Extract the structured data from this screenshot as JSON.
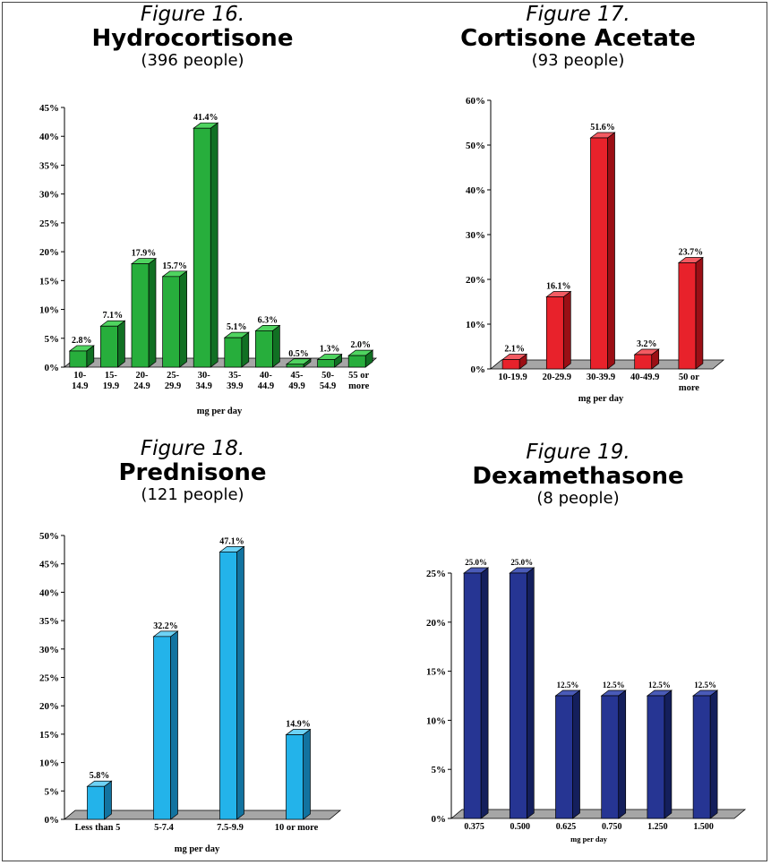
{
  "charts": [
    {
      "figure_label": "Figure 16.",
      "title": "Hydrocortisone",
      "subtitle": "(396 people)",
      "xlabel": "mg per day",
      "colors": {
        "front": "#27ae3c",
        "side": "#117023",
        "top": "#4fd460"
      },
      "yticks": [
        "0%",
        "5%",
        "10%",
        "15%",
        "20%",
        "25%",
        "30%",
        "35%",
        "40%",
        "45%"
      ]
    },
    {
      "figure_label": "Figure 17.",
      "title": "Cortisone Acetate",
      "subtitle": "(93 people)",
      "xlabel": "mg per day",
      "colors": {
        "front": "#e8222b",
        "side": "#9b0f15",
        "top": "#f35b62"
      },
      "yticks": [
        "0%",
        "10%",
        "20%",
        "30%",
        "40%",
        "50%",
        "60%"
      ]
    },
    {
      "figure_label": "Figure 18.",
      "title": "Prednisone",
      "subtitle": "(121 people)",
      "xlabel": "mg per day",
      "colors": {
        "front": "#23b3ea",
        "side": "#1273a0",
        "top": "#6dd2f5"
      },
      "yticks": [
        "0%",
        "5%",
        "10%",
        "15%",
        "20%",
        "25%",
        "30%",
        "35%",
        "40%",
        "45%",
        "50%"
      ]
    },
    {
      "figure_label": "Figure 19.",
      "title": "Dexamethasone",
      "subtitle": "(8 people)",
      "xlabel": "mg per day",
      "colors": {
        "front": "#263593",
        "side": "#141f5c",
        "top": "#4a5bb8"
      },
      "yticks": [
        "0%",
        "5%",
        "10%",
        "15%",
        "20%",
        "25%"
      ]
    }
  ],
  "chart_data": [
    {
      "type": "bar",
      "title": "Hydrocortisone",
      "xlabel": "mg per day",
      "ylabel": "",
      "ylim": [
        0,
        45
      ],
      "categories": [
        [
          "10-",
          "14.9"
        ],
        [
          "15-",
          "19.9"
        ],
        [
          "20-",
          "24.9"
        ],
        [
          "25-",
          "29.9"
        ],
        [
          "30-",
          "34.9"
        ],
        [
          "35-",
          "39.9"
        ],
        [
          "40-",
          "44.9"
        ],
        [
          "45-",
          "49.9"
        ],
        [
          "50-",
          "54.9"
        ],
        [
          "55 or",
          "more"
        ]
      ],
      "values": [
        2.8,
        7.1,
        17.9,
        15.7,
        41.4,
        5.1,
        6.3,
        0.5,
        1.3,
        2.0
      ],
      "value_labels": [
        "2.8%",
        "7.1%",
        "17.9%",
        "15.7%",
        "41.4%",
        "5.1%",
        "6.3%",
        "0.5%",
        "1.3%",
        "2.0%"
      ]
    },
    {
      "type": "bar",
      "title": "Cortisone Acetate",
      "xlabel": "mg per day",
      "ylabel": "",
      "ylim": [
        0,
        60
      ],
      "categories": [
        [
          "10-19.9"
        ],
        [
          "20-29.9"
        ],
        [
          "30-39.9"
        ],
        [
          "40-49.9"
        ],
        [
          "50 or",
          "more"
        ]
      ],
      "values": [
        2.1,
        16.1,
        51.6,
        3.2,
        23.7
      ],
      "value_labels": [
        "2.1%",
        "16.1%",
        "51.6%",
        "3.2%",
        "23.7%"
      ]
    },
    {
      "type": "bar",
      "title": "Prednisone",
      "xlabel": "mg per day",
      "ylabel": "",
      "ylim": [
        0,
        50
      ],
      "categories": [
        [
          "Less than 5"
        ],
        [
          "5-7.4"
        ],
        [
          "7.5-9.9"
        ],
        [
          "10 or more"
        ]
      ],
      "values": [
        5.8,
        32.2,
        47.1,
        14.9
      ],
      "value_labels": [
        "5.8%",
        "32.2%",
        "47.1%",
        "14.9%"
      ]
    },
    {
      "type": "bar",
      "title": "Dexamethasone",
      "xlabel": "mg per day",
      "ylabel": "",
      "ylim": [
        0,
        25
      ],
      "categories": [
        [
          "0.375"
        ],
        [
          "0.500"
        ],
        [
          "0.625"
        ],
        [
          "0.750"
        ],
        [
          "1.250"
        ],
        [
          "1.500"
        ]
      ],
      "values": [
        25.0,
        25.0,
        12.5,
        12.5,
        12.5,
        12.5
      ],
      "value_labels": [
        "25.0%",
        "25.0%",
        "12.5%",
        "12.5%",
        "12.5%",
        "12.5%"
      ]
    }
  ]
}
